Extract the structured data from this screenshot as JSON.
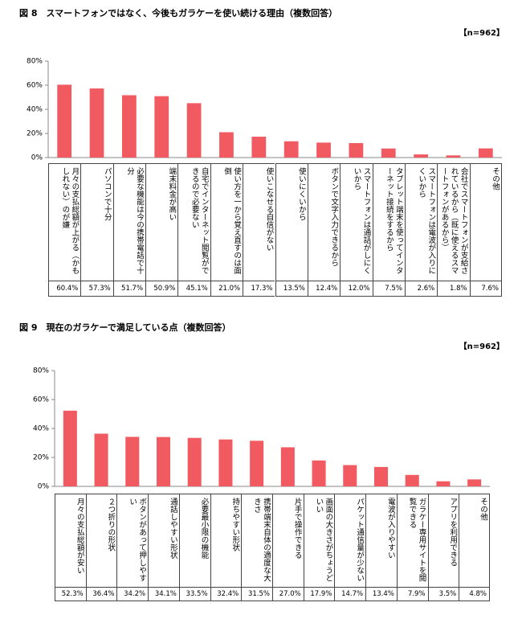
{
  "chart_data": [
    {
      "type": "bar",
      "title": "図 8　スマートフォンではなく、今後もガラケーを使い続ける理由（複数回答）",
      "note": "【n=962】",
      "categories": [
        "月々の支払総額が上がる（かもしれない）のが嫌",
        "パソコンで十分",
        "必要な機能は今の携帯電話で十分",
        "端末料金が高い",
        "自宅でインターネット閲覧ができるので必要ない",
        "使い方を一から覚え直すのは面倒",
        "使いこなせる自信がない",
        "使いにくいから",
        "ボタンで文字入力できるから",
        "スマートフォンは通話がしにくいから",
        "タブレット端末を使ってインターネット接続をするから",
        "スマートフォンは電波が入りにくいから",
        "会社でスマートフォンが支給されているから（既に使えるスマートフォンがあるから）",
        "その他"
      ],
      "values": [
        60.4,
        57.3,
        51.7,
        50.9,
        45.1,
        21.0,
        17.3,
        13.5,
        12.4,
        12.0,
        7.5,
        2.6,
        1.8,
        7.6
      ],
      "value_labels": [
        "60.4%",
        "57.3%",
        "51.7%",
        "50.9%",
        "45.1%",
        "21.0%",
        "17.3%",
        "13.5%",
        "12.4%",
        "12.0%",
        "7.5%",
        "2.6%",
        "1.8%",
        "7.6%"
      ],
      "color": "#f15a60",
      "ylim": [
        0,
        80
      ],
      "yticks": [
        {
          "value": 0,
          "label": "0%"
        },
        {
          "value": 20,
          "label": "20%"
        },
        {
          "value": 40,
          "label": "40%"
        },
        {
          "value": 60,
          "label": "60%"
        },
        {
          "value": 80,
          "label": "80%"
        }
      ]
    },
    {
      "type": "bar",
      "title": "図 9　現在のガラケーで満足している点（複数回答）",
      "note": "【n=962】",
      "categories": [
        "月々の支払総額が安い",
        "２つ折りの形状",
        "ボタンがあって押しやすい",
        "通話しやすい形状",
        "必要最小限の機能",
        "持ちやすい形状",
        "携帯端末自体の適度な大きさ",
        "片手で操作できる",
        "画面の大きさがちょうどいい",
        "パケット通信量が少ない",
        "電波が入りやすい",
        "ガラケー専用サイトを閲覧できる",
        "アプリを利用できる",
        "その他"
      ],
      "values": [
        52.3,
        36.4,
        34.2,
        34.1,
        33.5,
        32.4,
        31.5,
        27.0,
        17.9,
        14.7,
        13.4,
        7.9,
        3.5,
        4.8
      ],
      "value_labels": [
        "52.3%",
        "36.4%",
        "34.2%",
        "34.1%",
        "33.5%",
        "32.4%",
        "31.5%",
        "27.0%",
        "17.9%",
        "14.7%",
        "13.4%",
        "7.9%",
        "3.5%",
        "4.8%"
      ],
      "color": "#f15a60",
      "ylim": [
        0,
        80
      ],
      "yticks": [
        {
          "value": 0,
          "label": "0%"
        },
        {
          "value": 20,
          "label": "20%"
        },
        {
          "value": 40,
          "label": "40%"
        },
        {
          "value": 60,
          "label": "60%"
        },
        {
          "value": 80,
          "label": "80%"
        }
      ]
    }
  ]
}
